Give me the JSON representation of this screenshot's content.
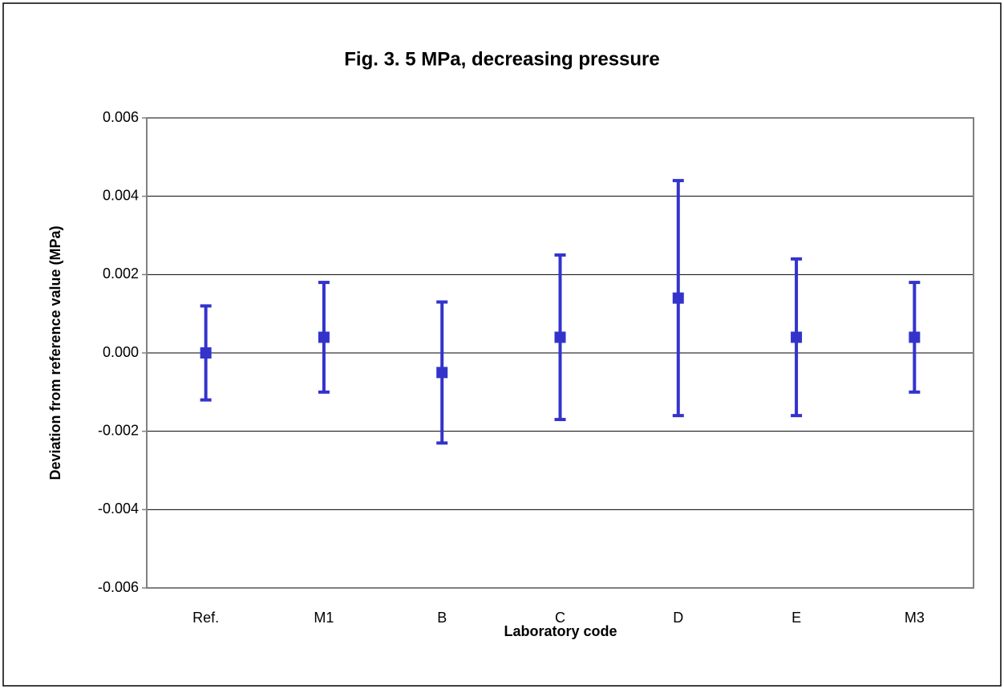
{
  "chart_data": {
    "type": "errorbar",
    "title": "Fig. 3.  5 MPa, decreasing pressure",
    "x_label": "Laboratory code",
    "y_label": "Deviation from reference value (MPa)",
    "categories": [
      "Ref.",
      "M1",
      "B",
      "C",
      "D",
      "E",
      "M3"
    ],
    "values": [
      0,
      0.0004,
      -0.0005,
      0.0004,
      0.0014,
      0.0004,
      0.0004
    ],
    "errors": [
      0.0012,
      0.0014,
      0.0018,
      0.0021,
      0.003,
      0.002,
      0.0014
    ],
    "color": "#3333cc",
    "ylim": [
      -0.006,
      0.006
    ],
    "yticks": [
      -0.006,
      -0.004,
      -0.002,
      {
        "value": 0,
        "label": "0.000"
      },
      0.002,
      0.004,
      0.006
    ],
    "grid": true
  }
}
